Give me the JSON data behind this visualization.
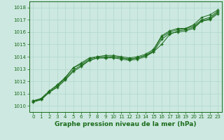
{
  "x": [
    0,
    1,
    2,
    3,
    4,
    5,
    6,
    7,
    8,
    9,
    10,
    11,
    12,
    13,
    14,
    15,
    16,
    17,
    18,
    19,
    20,
    21,
    22,
    23
  ],
  "line1": [
    1010.3,
    1010.5,
    1011.1,
    1011.6,
    1012.2,
    1012.9,
    1013.3,
    1013.7,
    1013.9,
    1013.9,
    1014.0,
    1013.9,
    1013.8,
    1013.9,
    1014.1,
    1014.4,
    1015.0,
    1015.8,
    1016.1,
    1016.2,
    1016.4,
    1016.9,
    1017.1,
    1017.6
  ],
  "line2": [
    1010.4,
    1010.6,
    1011.2,
    1011.7,
    1012.3,
    1013.1,
    1013.4,
    1013.8,
    1014.0,
    1014.0,
    1014.0,
    1013.9,
    1013.8,
    1013.9,
    1014.1,
    1014.5,
    1015.6,
    1016.0,
    1016.2,
    1016.3,
    1016.5,
    1017.0,
    1017.2,
    1017.7
  ],
  "line3": [
    1010.4,
    1010.5,
    1011.1,
    1011.5,
    1012.1,
    1012.8,
    1013.2,
    1013.7,
    1013.9,
    1013.9,
    1013.9,
    1013.8,
    1013.7,
    1013.8,
    1014.0,
    1014.4,
    1015.4,
    1015.9,
    1016.0,
    1016.1,
    1016.3,
    1016.9,
    1017.0,
    1017.5
  ],
  "line4": [
    1010.4,
    1010.6,
    1011.2,
    1011.7,
    1012.3,
    1013.1,
    1013.5,
    1013.9,
    1014.0,
    1014.1,
    1014.1,
    1014.0,
    1013.9,
    1014.0,
    1014.2,
    1014.6,
    1015.7,
    1016.1,
    1016.3,
    1016.3,
    1016.6,
    1017.2,
    1017.4,
    1017.8
  ],
  "line_color": "#1a6b1a",
  "bg_color": "#cce8e0",
  "grid_color": "#b0d8cc",
  "title": "Graphe pression niveau de la mer (hPa)",
  "ylim": [
    1009.5,
    1018.5
  ],
  "yticks": [
    1010,
    1011,
    1012,
    1013,
    1014,
    1015,
    1016,
    1017,
    1018
  ],
  "xlim": [
    -0.5,
    23.5
  ],
  "xticks": [
    0,
    1,
    2,
    3,
    4,
    5,
    6,
    7,
    8,
    9,
    10,
    11,
    12,
    13,
    14,
    15,
    16,
    17,
    18,
    19,
    20,
    21,
    22,
    23
  ]
}
